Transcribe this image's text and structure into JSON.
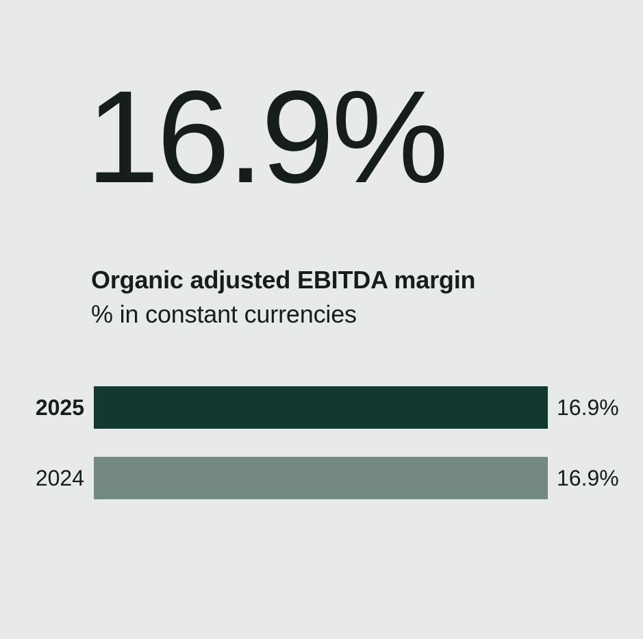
{
  "hero": {
    "value": "16.9%"
  },
  "title": {
    "line1": "Organic adjusted EBITDA margin",
    "line2": "% in constant currencies"
  },
  "chart_data": {
    "type": "bar",
    "orientation": "horizontal",
    "title": "Organic adjusted EBITDA margin",
    "subtitle": "% in constant currencies",
    "categories": [
      "2025",
      "2024"
    ],
    "values": [
      16.9,
      16.9
    ],
    "value_labels": [
      "16.9%",
      "16.9%"
    ],
    "xlim": [
      0,
      16.9
    ],
    "grid": false,
    "legend": "none",
    "bar_colors": [
      "#113831",
      "#758984"
    ],
    "highlight_category": "2025"
  },
  "colors": {
    "background": "#E7EAE9",
    "text": "#161E1C",
    "bar_2025": "#113831",
    "bar_2024": "#758984"
  }
}
